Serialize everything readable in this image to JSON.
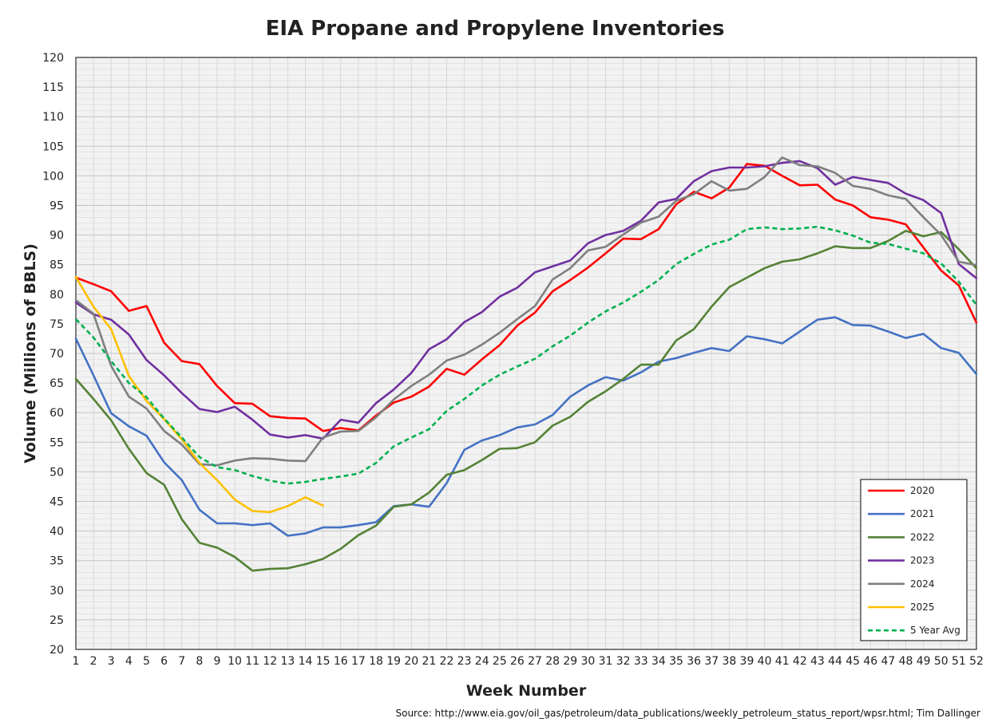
{
  "chart_data": {
    "type": "line",
    "title": "EIA Propane and Propylene Inventories",
    "xlabel": "Week Number",
    "ylabel": "Volume (Millions of BBLS)",
    "source": "Source: http://www.eia.gov/oil_gas/petroleum/data_publications/weekly_petroleum_status_report/wpsr.html; Tim Dallinger",
    "xlim": [
      1,
      52
    ],
    "ylim": [
      20,
      120
    ],
    "y_ticks": [
      20,
      25,
      30,
      35,
      40,
      45,
      50,
      55,
      60,
      65,
      70,
      75,
      80,
      85,
      90,
      95,
      100,
      105,
      110,
      115,
      120
    ],
    "x_ticks": [
      1,
      2,
      3,
      4,
      5,
      6,
      7,
      8,
      9,
      10,
      11,
      12,
      13,
      14,
      15,
      16,
      17,
      18,
      19,
      20,
      21,
      22,
      23,
      24,
      25,
      26,
      27,
      28,
      29,
      30,
      31,
      32,
      33,
      34,
      35,
      36,
      37,
      38,
      39,
      40,
      41,
      42,
      43,
      44,
      45,
      46,
      47,
      48,
      49,
      50,
      51,
      52
    ],
    "grid": true,
    "plot_background": "#f2f2f2",
    "legend_position": "bottom-right",
    "series": [
      {
        "name": "2020",
        "color": "#ff0000",
        "dashed": false,
        "values": [
          82.8,
          81.7,
          80.5,
          77.2,
          78.0,
          71.8,
          68.7,
          68.2,
          64.5,
          61.6,
          61.5,
          59.4,
          59.1,
          59.0,
          56.9,
          57.4,
          57.0,
          59.5,
          61.7,
          62.7,
          64.4,
          67.4,
          66.4,
          69.0,
          71.4,
          74.7,
          76.9,
          80.5,
          82.4,
          84.5,
          86.9,
          89.4,
          89.3,
          91.0,
          95.2,
          97.3,
          96.2,
          98.0,
          102.0,
          101.7,
          100.0,
          98.4,
          98.5,
          96.0,
          95.0,
          93.0,
          92.6,
          91.8,
          87.9,
          84.0,
          81.5,
          75.2
        ]
      },
      {
        "name": "2021",
        "color": "#4472c4",
        "dashed": false,
        "values": [
          72.5,
          66.3,
          59.9,
          57.7,
          56.1,
          51.6,
          48.6,
          43.6,
          41.3,
          41.3,
          41.0,
          41.3,
          39.2,
          39.6,
          40.6,
          40.6,
          41.0,
          41.5,
          44.2,
          44.5,
          44.1,
          48.1,
          53.7,
          55.3,
          56.2,
          57.5,
          58.0,
          59.6,
          62.7,
          64.6,
          66.0,
          65.4,
          66.8,
          68.6,
          69.2,
          70.1,
          70.9,
          70.4,
          72.9,
          72.4,
          71.7,
          73.7,
          75.7,
          76.1,
          74.8,
          74.7,
          73.7,
          72.6,
          73.3,
          70.9,
          70.1,
          66.5
        ]
      },
      {
        "name": "2022",
        "color": "#548235",
        "dashed": false,
        "values": [
          65.7,
          62.3,
          58.7,
          53.9,
          49.8,
          47.8,
          42.0,
          38.0,
          37.2,
          35.6,
          33.3,
          33.6,
          33.7,
          34.4,
          35.3,
          37.0,
          39.3,
          40.9,
          44.1,
          44.5,
          46.5,
          49.5,
          50.3,
          52.0,
          53.9,
          54.0,
          55.0,
          57.8,
          59.3,
          61.8,
          63.6,
          65.7,
          68.1,
          68.1,
          72.2,
          74.1,
          77.9,
          81.2,
          82.8,
          84.4,
          85.5,
          85.9,
          86.9,
          88.1,
          87.8,
          87.8,
          89.0,
          90.7,
          89.8,
          90.5,
          87.6,
          84.4
        ]
      },
      {
        "name": "2023",
        "color": "#7030a0",
        "dashed": false,
        "values": [
          78.6,
          76.6,
          75.7,
          73.2,
          68.9,
          66.3,
          63.3,
          60.6,
          60.1,
          61.0,
          58.8,
          56.3,
          55.8,
          56.2,
          55.6,
          58.8,
          58.3,
          61.6,
          63.9,
          66.7,
          70.7,
          72.4,
          75.3,
          77.0,
          79.6,
          81.1,
          83.7,
          84.7,
          85.7,
          88.6,
          90.0,
          90.7,
          92.4,
          95.5,
          96.1,
          99.1,
          100.8,
          101.4,
          101.4,
          101.6,
          102.2,
          102.5,
          101.3,
          98.5,
          99.8,
          99.3,
          98.8,
          97.0,
          95.9,
          93.7,
          85.1,
          82.7
        ]
      },
      {
        "name": "2024",
        "color": "#7f7f7f",
        "dashed": false,
        "values": [
          79.0,
          76.7,
          67.9,
          62.7,
          60.7,
          56.9,
          54.6,
          51.3,
          51.1,
          51.9,
          52.3,
          52.2,
          51.9,
          51.8,
          55.8,
          56.8,
          56.9,
          59.2,
          62.2,
          64.5,
          66.4,
          68.8,
          69.8,
          71.5,
          73.5,
          75.8,
          78.0,
          82.5,
          84.4,
          87.4,
          88.0,
          90.1,
          92.1,
          93.1,
          95.8,
          96.9,
          99.1,
          97.5,
          97.8,
          99.8,
          103.1,
          101.8,
          101.6,
          100.5,
          98.3,
          97.8,
          96.7,
          96.1,
          93.0,
          90.0,
          85.5,
          84.9
        ]
      },
      {
        "name": "2025",
        "color": "#ffc000",
        "dashed": false,
        "values": [
          82.9,
          77.9,
          74.1,
          66.2,
          62.0,
          58.9,
          55.5,
          51.5,
          48.6,
          45.3,
          43.4,
          43.2,
          44.2,
          45.7,
          44.3
        ]
      },
      {
        "name": "5 Year Avg",
        "color": "#00b050",
        "dashed": true,
        "values": [
          75.8,
          72.7,
          68.7,
          65.0,
          62.6,
          59.0,
          55.8,
          52.5,
          50.8,
          50.3,
          49.3,
          48.5,
          48.0,
          48.3,
          48.8,
          49.2,
          49.7,
          51.5,
          54.3,
          55.8,
          57.2,
          60.3,
          62.3,
          64.6,
          66.4,
          67.8,
          69.1,
          71.2,
          73.0,
          75.2,
          77.1,
          78.6,
          80.4,
          82.4,
          85.1,
          86.8,
          88.4,
          89.2,
          91.0,
          91.3,
          91.0,
          91.1,
          91.4,
          90.8,
          89.9,
          88.7,
          88.5,
          87.7,
          86.9,
          85.2,
          82.1,
          78.2
        ]
      }
    ]
  }
}
